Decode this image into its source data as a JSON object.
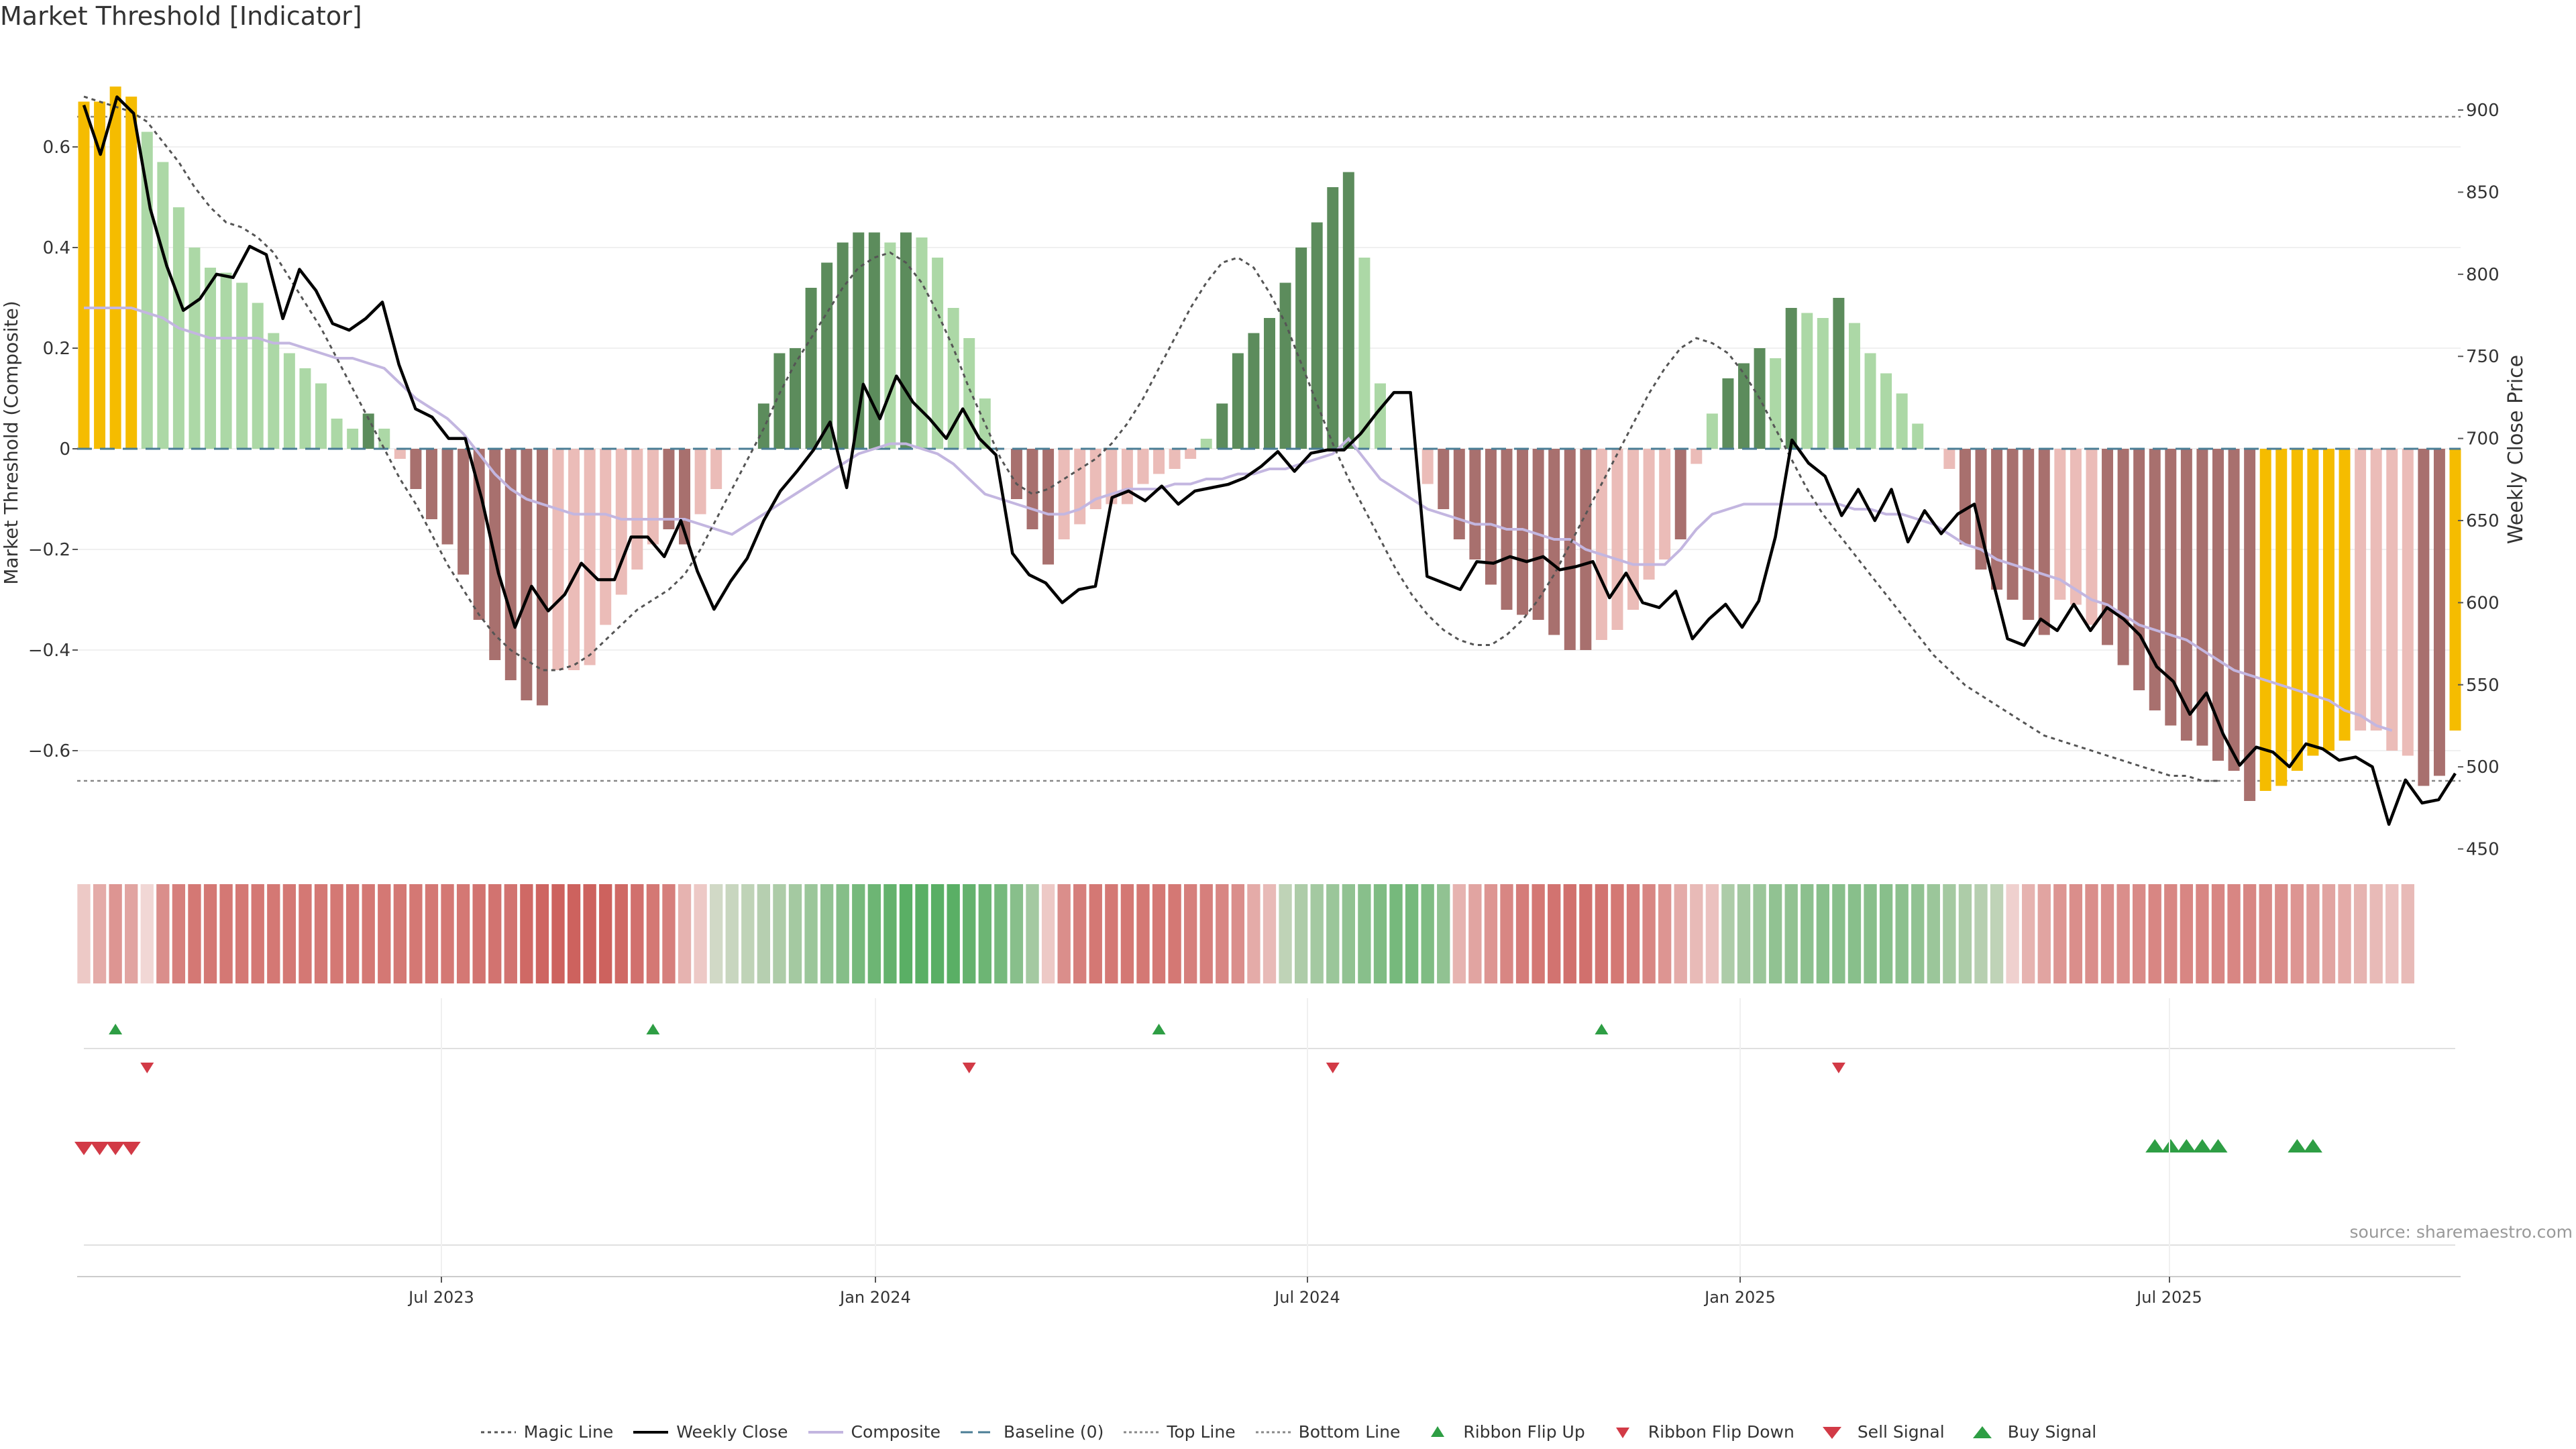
{
  "title": "Market Threshold [Indicator]",
  "source": "source: sharemaestro.com",
  "colors": {
    "gold": "#f5bc00",
    "dark_green": "#5c8c5c",
    "light_green": "#acd8a6",
    "dark_red": "#a8706e",
    "light_red": "#ebbcb8",
    "weekly_close": "#000000",
    "composite": "#c3b6e0",
    "baseline": "#4a7d95",
    "ribbon_green": "#3fa54f",
    "ribbon_red": "#c8534f",
    "signal_green": "#2e9e44",
    "signal_red": "#d23a46"
  },
  "chart_data": {
    "type": "bar",
    "title": "Market Threshold [Indicator]",
    "ylabel": "Market Threshold (Composite)",
    "y2label": "Weekly Close Price",
    "ylim": [
      -0.79,
      0.79
    ],
    "y2lim": [
      440,
      918
    ],
    "yticks": [
      -0.6,
      -0.4,
      -0.2,
      0,
      0.2,
      0.4,
      0.6
    ],
    "y2ticks": [
      450,
      500,
      550,
      600,
      650,
      700,
      750,
      800,
      850,
      900
    ],
    "xticks": [
      "Jul 2023",
      "Jan 2024",
      "Jul 2024",
      "Jan 2025",
      "Jul 2025"
    ],
    "top_line": 0.66,
    "bottom_line": -0.66,
    "histogram": [
      0.69,
      0.69,
      0.72,
      0.7,
      0.63,
      0.57,
      0.48,
      0.4,
      0.36,
      0.35,
      0.33,
      0.29,
      0.23,
      0.19,
      0.16,
      0.13,
      0.06,
      0.04,
      0.07,
      0.04,
      -0.02,
      -0.08,
      -0.14,
      -0.19,
      -0.25,
      -0.34,
      -0.42,
      -0.46,
      -0.5,
      -0.51,
      -0.44,
      -0.44,
      -0.43,
      -0.35,
      -0.29,
      -0.24,
      -0.19,
      -0.16,
      -0.19,
      -0.13,
      -0.08,
      0.0,
      0.0,
      0.09,
      0.19,
      0.2,
      0.32,
      0.37,
      0.41,
      0.43,
      0.43,
      0.41,
      0.43,
      0.42,
      0.38,
      0.28,
      0.22,
      0.1,
      0.0,
      -0.1,
      -0.16,
      -0.23,
      -0.18,
      -0.15,
      -0.12,
      -0.11,
      -0.11,
      -0.07,
      -0.05,
      -0.04,
      -0.02,
      0.02,
      0.09,
      0.19,
      0.23,
      0.26,
      0.33,
      0.4,
      0.45,
      0.52,
      0.55,
      0.38,
      0.13,
      0.0,
      0.0,
      -0.07,
      -0.12,
      -0.18,
      -0.22,
      -0.27,
      -0.32,
      -0.33,
      -0.34,
      -0.37,
      -0.4,
      -0.4,
      -0.38,
      -0.36,
      -0.32,
      -0.26,
      -0.22,
      -0.18,
      -0.03,
      0.07,
      0.14,
      0.17,
      0.2,
      0.18,
      0.28,
      0.27,
      0.26,
      0.3,
      0.25,
      0.19,
      0.15,
      0.11,
      0.05,
      0.0,
      -0.04,
      -0.19,
      -0.24,
      -0.28,
      -0.3,
      -0.34,
      -0.37,
      -0.3,
      -0.31,
      -0.35,
      -0.39,
      -0.43,
      -0.48,
      -0.52,
      -0.55,
      -0.58,
      -0.59,
      -0.62,
      -0.64,
      -0.7,
      -0.68,
      -0.67,
      -0.64,
      -0.61,
      -0.6,
      -0.58,
      -0.56,
      -0.56,
      -0.6,
      -0.61,
      -0.67,
      -0.65,
      -0.56
    ],
    "histogram_shade": [
      "gold",
      "gold",
      "gold",
      "gold",
      "light_green",
      "light_green",
      "light_green",
      "light_green",
      "light_green",
      "light_green",
      "light_green",
      "light_green",
      "light_green",
      "light_green",
      "light_green",
      "light_green",
      "light_green",
      "light_green",
      "dark_green",
      "light_green",
      "light_red",
      "dark_red",
      "dark_red",
      "dark_red",
      "dark_red",
      "dark_red",
      "dark_red",
      "dark_red",
      "dark_red",
      "dark_red",
      "light_red",
      "light_red",
      "light_red",
      "light_red",
      "light_red",
      "light_red",
      "light_red",
      "dark_red",
      "dark_red",
      "light_red",
      "light_red",
      "light_red",
      "light_red",
      "dark_green",
      "dark_green",
      "dark_green",
      "dark_green",
      "dark_green",
      "dark_green",
      "dark_green",
      "dark_green",
      "light_green",
      "dark_green",
      "light_green",
      "light_green",
      "light_green",
      "light_green",
      "light_green",
      "light_red",
      "dark_red",
      "dark_red",
      "dark_red",
      "light_red",
      "light_red",
      "light_red",
      "light_red",
      "light_red",
      "light_red",
      "light_red",
      "light_red",
      "light_red",
      "light_green",
      "dark_green",
      "dark_green",
      "dark_green",
      "dark_green",
      "dark_green",
      "dark_green",
      "dark_green",
      "dark_green",
      "dark_green",
      "light_green",
      "light_green",
      "light_red",
      "light_red",
      "light_red",
      "dark_red",
      "dark_red",
      "dark_red",
      "dark_red",
      "dark_red",
      "dark_red",
      "dark_red",
      "dark_red",
      "dark_red",
      "dark_red",
      "light_red",
      "light_red",
      "light_red",
      "light_red",
      "light_red",
      "dark_red",
      "light_red",
      "light_green",
      "dark_green",
      "dark_green",
      "dark_green",
      "light_green",
      "dark_green",
      "light_green",
      "light_green",
      "dark_green",
      "light_green",
      "light_green",
      "light_green",
      "light_green",
      "light_green",
      "light_red",
      "light_red",
      "dark_red",
      "dark_red",
      "dark_red",
      "dark_red",
      "dark_red",
      "dark_red",
      "light_red",
      "light_red",
      "light_red",
      "dark_red",
      "dark_red",
      "dark_red",
      "dark_red",
      "dark_red",
      "dark_red",
      "dark_red",
      "dark_red",
      "dark_red",
      "dark_red",
      "gold",
      "gold",
      "gold",
      "gold",
      "gold",
      "gold",
      "light_red",
      "light_red",
      "light_red",
      "light_red",
      "dark_red",
      "dark_red",
      "gold",
      "light_red",
      "light_red"
    ],
    "weekly_close": [
      903,
      873,
      908,
      898,
      840,
      805,
      778,
      785,
      800,
      798,
      817,
      812,
      773,
      803,
      790,
      770,
      766,
      773,
      783,
      745,
      718,
      713,
      700,
      700,
      663,
      618,
      585,
      610,
      595,
      605,
      624,
      614,
      614,
      640,
      640,
      628,
      650,
      619,
      596,
      613,
      627,
      650,
      668,
      680,
      693,
      710,
      670,
      733,
      712,
      738,
      722,
      712,
      700,
      718,
      700,
      690,
      630,
      617,
      612,
      600,
      608,
      610,
      664,
      668,
      662,
      671,
      660,
      668,
      670,
      672,
      676,
      683,
      692,
      680,
      691,
      693,
      693,
      703,
      716,
      728,
      728,
      616,
      612,
      608,
      625,
      624,
      628,
      625,
      628,
      620,
      622,
      625,
      603,
      618,
      600,
      597,
      607,
      578,
      590,
      599,
      585,
      601,
      640,
      699,
      685,
      677,
      653,
      669,
      650,
      669,
      637,
      656,
      642,
      654,
      660,
      618,
      578,
      574,
      590,
      583,
      599,
      583,
      597,
      590,
      580,
      561,
      552,
      532,
      545,
      520,
      501,
      512,
      509,
      500,
      514,
      511,
      504,
      506,
      500,
      465,
      492,
      478,
      480,
      496
    ],
    "composite": [
      0.28,
      0.28,
      0.28,
      0.28,
      0.27,
      0.26,
      0.24,
      0.23,
      0.22,
      0.22,
      0.22,
      0.22,
      0.21,
      0.21,
      0.2,
      0.19,
      0.18,
      0.18,
      0.17,
      0.16,
      0.13,
      0.1,
      0.08,
      0.06,
      0.03,
      -0.01,
      -0.05,
      -0.08,
      -0.1,
      -0.11,
      -0.12,
      -0.13,
      -0.13,
      -0.13,
      -0.14,
      -0.14,
      -0.14,
      -0.14,
      -0.14,
      -0.15,
      -0.16,
      -0.17,
      -0.15,
      -0.13,
      -0.11,
      -0.09,
      -0.07,
      -0.05,
      -0.03,
      -0.01,
      0.0,
      0.01,
      0.01,
      0.0,
      -0.01,
      -0.03,
      -0.06,
      -0.09,
      -0.1,
      -0.11,
      -0.12,
      -0.13,
      -0.13,
      -0.12,
      -0.1,
      -0.09,
      -0.08,
      -0.08,
      -0.08,
      -0.07,
      -0.07,
      -0.06,
      -0.06,
      -0.05,
      -0.05,
      -0.04,
      -0.04,
      -0.03,
      -0.02,
      -0.01,
      0.02,
      -0.02,
      -0.06,
      -0.08,
      -0.1,
      -0.12,
      -0.13,
      -0.14,
      -0.15,
      -0.15,
      -0.16,
      -0.16,
      -0.17,
      -0.18,
      -0.18,
      -0.2,
      -0.21,
      -0.22,
      -0.23,
      -0.23,
      -0.23,
      -0.2,
      -0.16,
      -0.13,
      -0.12,
      -0.11,
      -0.11,
      -0.11,
      -0.11,
      -0.11,
      -0.11,
      -0.11,
      -0.12,
      -0.12,
      -0.13,
      -0.13,
      -0.14,
      -0.15,
      -0.17,
      -0.19,
      -0.2,
      -0.22,
      -0.23,
      -0.24,
      -0.25,
      -0.26,
      -0.28,
      -0.3,
      -0.31,
      -0.33,
      -0.35,
      -0.36,
      -0.37,
      -0.38,
      -0.4,
      -0.42,
      -0.44,
      -0.45,
      -0.46,
      -0.47,
      -0.48,
      -0.49,
      -0.5,
      -0.52,
      -0.53,
      -0.55,
      -0.56
    ],
    "magic_line": [
      0.7,
      0.69,
      0.68,
      0.67,
      0.65,
      0.61,
      0.57,
      0.52,
      0.48,
      0.45,
      0.44,
      0.42,
      0.39,
      0.34,
      0.29,
      0.24,
      0.18,
      0.12,
      0.06,
      0.0,
      -0.06,
      -0.11,
      -0.17,
      -0.23,
      -0.28,
      -0.33,
      -0.37,
      -0.4,
      -0.42,
      -0.44,
      -0.44,
      -0.43,
      -0.41,
      -0.38,
      -0.35,
      -0.32,
      -0.3,
      -0.28,
      -0.25,
      -0.2,
      -0.14,
      -0.08,
      -0.02,
      0.04,
      0.11,
      0.17,
      0.22,
      0.27,
      0.32,
      0.36,
      0.38,
      0.39,
      0.37,
      0.33,
      0.27,
      0.2,
      0.12,
      0.05,
      -0.02,
      -0.07,
      -0.09,
      -0.08,
      -0.06,
      -0.04,
      -0.02,
      0.01,
      0.05,
      0.1,
      0.16,
      0.22,
      0.28,
      0.33,
      0.37,
      0.38,
      0.36,
      0.31,
      0.25,
      0.17,
      0.09,
      0.01,
      -0.06,
      -0.12,
      -0.18,
      -0.24,
      -0.29,
      -0.33,
      -0.36,
      -0.38,
      -0.39,
      -0.39,
      -0.37,
      -0.34,
      -0.3,
      -0.25,
      -0.19,
      -0.13,
      -0.07,
      -0.01,
      0.05,
      0.11,
      0.16,
      0.2,
      0.22,
      0.21,
      0.19,
      0.15,
      0.1,
      0.04,
      -0.02,
      -0.08,
      -0.13,
      -0.17,
      -0.21,
      -0.25,
      -0.29,
      -0.33,
      -0.37,
      -0.41,
      -0.44,
      -0.47,
      -0.49,
      -0.51,
      -0.53,
      -0.55,
      -0.57,
      -0.58,
      -0.59,
      -0.6,
      -0.61,
      -0.62,
      -0.63,
      -0.64,
      -0.65,
      -0.65,
      -0.66,
      -0.66
    ],
    "ribbon_shade": [
      0.2,
      0.4,
      0.55,
      0.45,
      0.1,
      0.6,
      0.7,
      0.75,
      0.75,
      0.75,
      0.75,
      0.75,
      0.75,
      0.75,
      0.75,
      0.75,
      0.75,
      0.75,
      0.75,
      0.75,
      0.75,
      0.75,
      0.75,
      0.75,
      0.75,
      0.78,
      0.78,
      0.78,
      0.85,
      0.88,
      0.9,
      0.9,
      0.9,
      0.9,
      0.85,
      0.8,
      0.75,
      0.7,
      0.35,
      0.2,
      -0.2,
      -0.25,
      -0.3,
      -0.35,
      -0.4,
      -0.45,
      -0.5,
      -0.55,
      -0.62,
      -0.7,
      -0.75,
      -0.8,
      -0.85,
      -0.85,
      -0.85,
      -0.85,
      -0.8,
      -0.75,
      -0.7,
      -0.6,
      -0.45,
      0.2,
      0.6,
      0.7,
      0.75,
      0.75,
      0.75,
      0.75,
      0.75,
      0.75,
      0.7,
      0.7,
      0.65,
      0.6,
      0.4,
      0.3,
      -0.3,
      -0.4,
      -0.45,
      -0.5,
      -0.55,
      -0.6,
      -0.65,
      -0.7,
      -0.7,
      -0.65,
      -0.55,
      0.35,
      0.45,
      0.55,
      0.65,
      0.72,
      0.75,
      0.78,
      0.8,
      0.8,
      0.78,
      0.75,
      0.72,
      0.65,
      0.55,
      0.4,
      0.3,
      0.25,
      -0.4,
      -0.45,
      -0.5,
      -0.55,
      -0.55,
      -0.58,
      -0.6,
      -0.6,
      -0.6,
      -0.6,
      -0.6,
      -0.58,
      -0.55,
      -0.5,
      -0.45,
      -0.4,
      -0.35,
      -0.3,
      0.15,
      0.35,
      0.45,
      0.55,
      0.6,
      0.6,
      0.6,
      0.6,
      0.62,
      0.65,
      0.65,
      0.65,
      0.65,
      0.65,
      0.65,
      0.65,
      0.62,
      0.6,
      0.55,
      0.5,
      0.45,
      0.4,
      0.35,
      0.3,
      0.25,
      0.3
    ],
    "ribbon_flip_up": [
      2,
      36,
      68,
      96
    ],
    "ribbon_flip_down": [
      4,
      56,
      79,
      111
    ],
    "sell_signal": [
      0,
      1,
      2,
      3
    ],
    "buy_signal": [
      131,
      132,
      133,
      134,
      135,
      140,
      141
    ],
    "legend": [
      "Magic Line",
      "Weekly Close",
      "Composite",
      "Baseline (0)",
      "Top Line",
      "Bottom Line",
      "Ribbon Flip Up",
      "Ribbon Flip Down",
      "Sell Signal",
      "Buy Signal"
    ]
  }
}
